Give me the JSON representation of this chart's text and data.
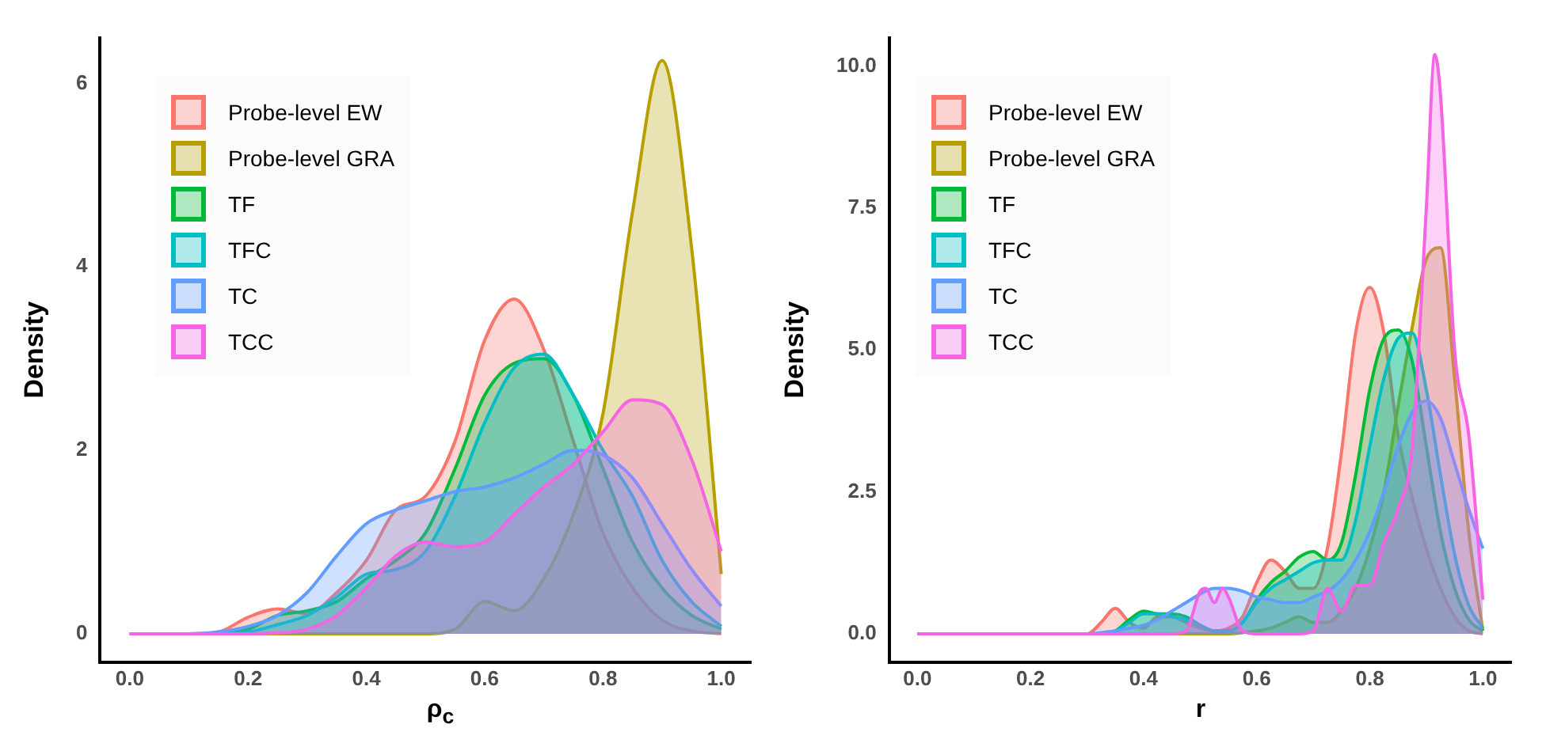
{
  "chart_data": [
    {
      "type": "area",
      "xlabel": "ρ$_{c}$",
      "ylabel": "Density",
      "legend": "top left",
      "grid": false,
      "xlim": [
        -0.05,
        1.05
      ],
      "ylim": [
        -0.31,
        6.5
      ],
      "xticks": [
        {
          "value": 0,
          "label": "0.0"
        },
        {
          "value": 0.2,
          "label": "0.2"
        },
        {
          "value": 0.4,
          "label": "0.4"
        },
        {
          "value": 0.6,
          "label": "0.6"
        },
        {
          "value": 0.8,
          "label": "0.8"
        },
        {
          "value": 1,
          "label": "1.0"
        }
      ],
      "yticks": [
        0,
        2,
        4,
        6
      ],
      "x": [
        0,
        0.05,
        0.1,
        0.15,
        0.2,
        0.25,
        0.3,
        0.35,
        0.4,
        0.45,
        0.5,
        0.55,
        0.6,
        0.65,
        0.7,
        0.75,
        0.8,
        0.85,
        0.9,
        0.95,
        1.0
      ],
      "series": [
        {
          "name": "Probe-level EW",
          "color": "#f8766d",
          "values": [
            0,
            0,
            0,
            0.02,
            0.18,
            0.27,
            0.22,
            0.45,
            0.8,
            1.35,
            1.5,
            2.1,
            3.2,
            3.65,
            3.1,
            2.1,
            1.1,
            0.5,
            0.15,
            0.03,
            0
          ]
        },
        {
          "name": "Probe-level GRA",
          "color": "#b79f00",
          "values": [
            0,
            0,
            0,
            0,
            0,
            0,
            0,
            0,
            0,
            0,
            0,
            0.05,
            0.35,
            0.25,
            0.6,
            1.3,
            2.4,
            4.6,
            6.25,
            4.2,
            0.65
          ]
        },
        {
          "name": "TF",
          "color": "#00ba38",
          "values": [
            0,
            0,
            0,
            0,
            0.05,
            0.2,
            0.25,
            0.35,
            0.6,
            0.8,
            1.1,
            1.8,
            2.6,
            2.95,
            3.0,
            2.6,
            1.8,
            1.0,
            0.5,
            0.2,
            0.05
          ]
        },
        {
          "name": "TFC",
          "color": "#00bfc4",
          "values": [
            0,
            0,
            0,
            0,
            0.02,
            0.1,
            0.2,
            0.4,
            0.65,
            0.7,
            0.9,
            1.5,
            2.3,
            2.9,
            3.05,
            2.6,
            2.0,
            1.5,
            0.8,
            0.35,
            0.08
          ]
        },
        {
          "name": "TC",
          "color": "#619cff",
          "values": [
            0,
            0,
            0,
            0.02,
            0.08,
            0.2,
            0.45,
            0.85,
            1.2,
            1.35,
            1.45,
            1.55,
            1.6,
            1.7,
            1.85,
            2.0,
            1.95,
            1.7,
            1.2,
            0.7,
            0.3
          ]
        },
        {
          "name": "TCC",
          "color": "#f564e3",
          "values": [
            0,
            0,
            0,
            0,
            0,
            0.01,
            0.05,
            0.2,
            0.5,
            0.85,
            1.0,
            0.95,
            1.0,
            1.3,
            1.6,
            1.85,
            2.2,
            2.55,
            2.5,
            1.9,
            0.9
          ]
        }
      ]
    },
    {
      "type": "area",
      "xlabel": "r",
      "ylabel": "Density",
      "legend": "top left",
      "grid": false,
      "xlim": [
        -0.05,
        1.05
      ],
      "ylim": [
        -0.5,
        10.5
      ],
      "xticks": [
        {
          "value": 0,
          "label": "0.0"
        },
        {
          "value": 0.2,
          "label": "0.2"
        },
        {
          "value": 0.4,
          "label": "0.4"
        },
        {
          "value": 0.6,
          "label": "0.6"
        },
        {
          "value": 0.8,
          "label": "0.8"
        },
        {
          "value": 1,
          "label": "1.0"
        }
      ],
      "yticks": [
        {
          "value": 0,
          "label": "0.0"
        },
        2.5,
        {
          "value": 5,
          "label": "5.0"
        },
        7.5,
        {
          "value": 10,
          "label": "10.0"
        }
      ],
      "x": [
        0,
        0.1,
        0.2,
        0.3,
        0.325,
        0.35,
        0.375,
        0.4,
        0.425,
        0.45,
        0.475,
        0.5,
        0.525,
        0.55,
        0.575,
        0.6,
        0.625,
        0.65,
        0.675,
        0.7,
        0.725,
        0.75,
        0.775,
        0.8,
        0.825,
        0.85,
        0.875,
        0.9,
        0.925,
        0.95,
        0.975,
        1.0
      ],
      "series": [
        {
          "name": "Probe-level EW",
          "color": "#f8766d",
          "values": [
            0,
            0,
            0,
            0,
            0.2,
            0.45,
            0.2,
            0.1,
            0.3,
            0.3,
            0.2,
            0.1,
            0.05,
            0.1,
            0.3,
            0.9,
            1.3,
            1.1,
            0.8,
            0.8,
            1.5,
            3.2,
            5.3,
            6.1,
            5.3,
            3.5,
            2.4,
            1.5,
            0.8,
            0.3,
            0.05,
            0
          ]
        },
        {
          "name": "Probe-level GRA",
          "color": "#b79f00",
          "values": [
            0,
            0,
            0,
            0,
            0,
            0,
            0,
            0,
            0,
            0,
            0,
            0,
            0,
            0,
            0.02,
            0.05,
            0.1,
            0.2,
            0.3,
            0.2,
            0.2,
            0.4,
            0.8,
            1.5,
            2.5,
            4.0,
            5.4,
            6.6,
            6.8,
            4.5,
            1.8,
            0.05
          ]
        },
        {
          "name": "TF",
          "color": "#00ba38",
          "values": [
            0,
            0,
            0,
            0,
            0,
            0.05,
            0.25,
            0.4,
            0.35,
            0.35,
            0.3,
            0.15,
            0.05,
            0.05,
            0.2,
            0.6,
            0.9,
            1.1,
            1.35,
            1.45,
            1.3,
            1.6,
            2.8,
            4.3,
            5.2,
            5.35,
            4.8,
            3.3,
            1.8,
            0.8,
            0.25,
            0.05
          ]
        },
        {
          "name": "TFC",
          "color": "#00bfc4",
          "values": [
            0,
            0,
            0,
            0,
            0,
            0.05,
            0.2,
            0.35,
            0.35,
            0.3,
            0.25,
            0.15,
            0.05,
            0.05,
            0.2,
            0.55,
            0.8,
            0.95,
            1.1,
            1.25,
            1.3,
            1.3,
            2.0,
            3.3,
            4.5,
            5.2,
            5.3,
            4.3,
            2.8,
            1.4,
            0.5,
            0.1
          ]
        },
        {
          "name": "TC",
          "color": "#619cff",
          "values": [
            0,
            0,
            0,
            0,
            0.02,
            0.05,
            0.1,
            0.15,
            0.25,
            0.4,
            0.55,
            0.7,
            0.8,
            0.8,
            0.75,
            0.65,
            0.6,
            0.55,
            0.55,
            0.65,
            0.75,
            0.95,
            1.3,
            1.8,
            2.5,
            3.3,
            3.9,
            4.1,
            3.8,
            3.0,
            2.2,
            1.5
          ]
        },
        {
          "name": "TCC",
          "color": "#f564e3",
          "x": [
            0,
            0.2,
            0.4,
            0.45,
            0.475,
            0.5,
            0.51,
            0.525,
            0.54,
            0.55,
            0.575,
            0.6,
            0.65,
            0.675,
            0.7,
            0.725,
            0.75,
            0.775,
            0.8,
            0.825,
            0.85,
            0.875,
            0.9,
            0.915,
            0.925,
            0.95,
            0.975,
            1.0
          ],
          "values": [
            0,
            0,
            0,
            0,
            0.05,
            0.75,
            0.8,
            0.55,
            0.8,
            0.65,
            0.05,
            0,
            0,
            0,
            0.05,
            0.8,
            0.4,
            0.85,
            0.85,
            1.6,
            2.2,
            3.3,
            7.5,
            10.2,
            9.5,
            5.0,
            3.5,
            0.6
          ]
        }
      ]
    }
  ]
}
